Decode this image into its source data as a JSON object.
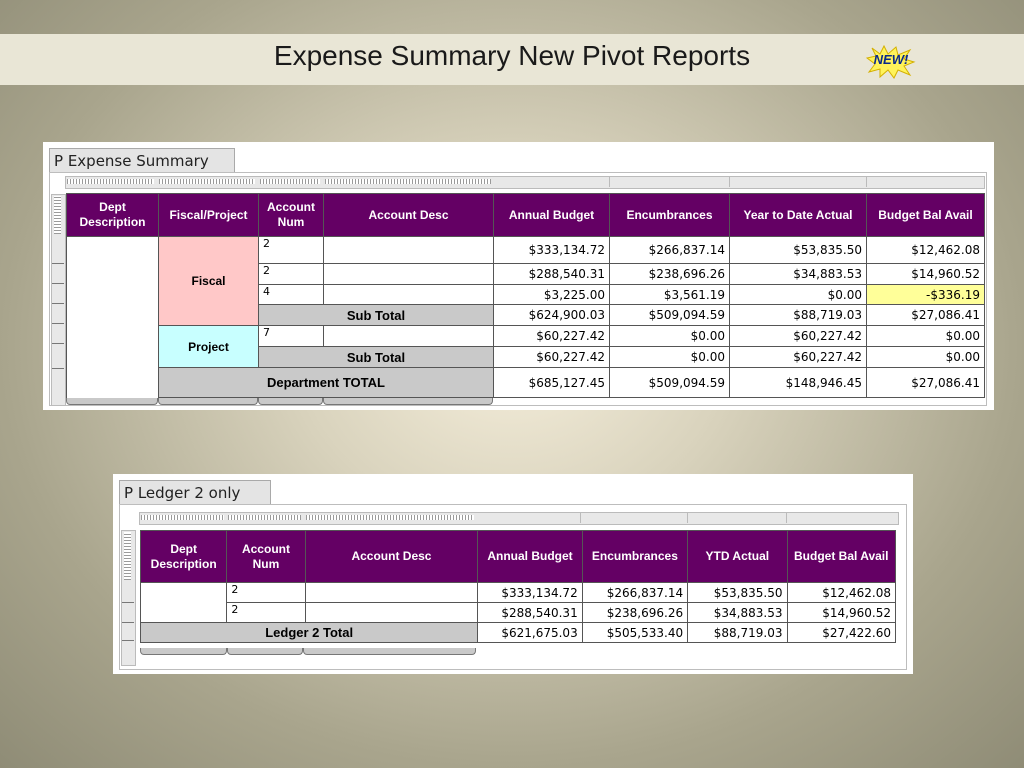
{
  "slide": {
    "title": "Expense Summary New Pivot Reports",
    "badge": "NEW!"
  },
  "expense_summary": {
    "panel_title": "P Expense Summary",
    "headers": {
      "dept_description": "Dept Description",
      "fiscal_project": "Fiscal/Project",
      "account_num": "Account Num",
      "account_desc": "Account Desc",
      "annual_budget": "Annual Budget",
      "encumbrances": "Encumbrances",
      "ytd_actual": "Year to Date Actual",
      "budget_bal_avail": "Budget Bal Avail"
    },
    "groups": {
      "fiscal": "Fiscal",
      "project": "Project"
    },
    "rows": [
      {
        "account": "2",
        "annual_budget": "$333,134.72",
        "encumbrances": "$266,837.14",
        "ytd_actual": "$53,835.50",
        "budget_bal_avail": "$12,462.08"
      },
      {
        "account": "2",
        "annual_budget": "$288,540.31",
        "encumbrances": "$238,696.26",
        "ytd_actual": "$34,883.53",
        "budget_bal_avail": "$14,960.52"
      },
      {
        "account": "4",
        "annual_budget": "$3,225.00",
        "encumbrances": "$3,561.19",
        "ytd_actual": "$0.00",
        "budget_bal_avail": "-$336.19"
      },
      {
        "label": "Sub Total",
        "annual_budget": "$624,900.03",
        "encumbrances": "$509,094.59",
        "ytd_actual": "$88,719.03",
        "budget_bal_avail": "$27,086.41"
      },
      {
        "account": "7",
        "annual_budget": "$60,227.42",
        "encumbrances": "$0.00",
        "ytd_actual": "$60,227.42",
        "budget_bal_avail": "$0.00"
      },
      {
        "label": "Sub Total",
        "annual_budget": "$60,227.42",
        "encumbrances": "$0.00",
        "ytd_actual": "$60,227.42",
        "budget_bal_avail": "$0.00"
      },
      {
        "label": "Department TOTAL",
        "annual_budget": "$685,127.45",
        "encumbrances": "$509,094.59",
        "ytd_actual": "$148,946.45",
        "budget_bal_avail": "$27,086.41"
      }
    ],
    "highlight_color": "#ffff99",
    "header_color": "#640064",
    "fiscal_color": "#ffc8c8",
    "project_color": "#c8ffff"
  },
  "ledger2": {
    "panel_title": "P Ledger 2 only",
    "headers": {
      "dept_description": "Dept Description",
      "account_num": "Account Num",
      "account_desc": "Account Desc",
      "annual_budget": "Annual Budget",
      "encumbrances": "Encumbrances",
      "ytd_actual": "YTD Actual",
      "budget_bal_avail": "Budget Bal Avail"
    },
    "rows": [
      {
        "account": "2",
        "annual_budget": "$333,134.72",
        "encumbrances": "$266,837.14",
        "ytd_actual": "$53,835.50",
        "budget_bal_avail": "$12,462.08"
      },
      {
        "account": "2",
        "annual_budget": "$288,540.31",
        "encumbrances": "$238,696.26",
        "ytd_actual": "$34,883.53",
        "budget_bal_avail": "$14,960.52"
      },
      {
        "label": "Ledger 2 Total",
        "annual_budget": "$621,675.03",
        "encumbrances": "$505,533.40",
        "ytd_actual": "$88,719.03",
        "budget_bal_avail": "$27,422.60"
      }
    ]
  }
}
